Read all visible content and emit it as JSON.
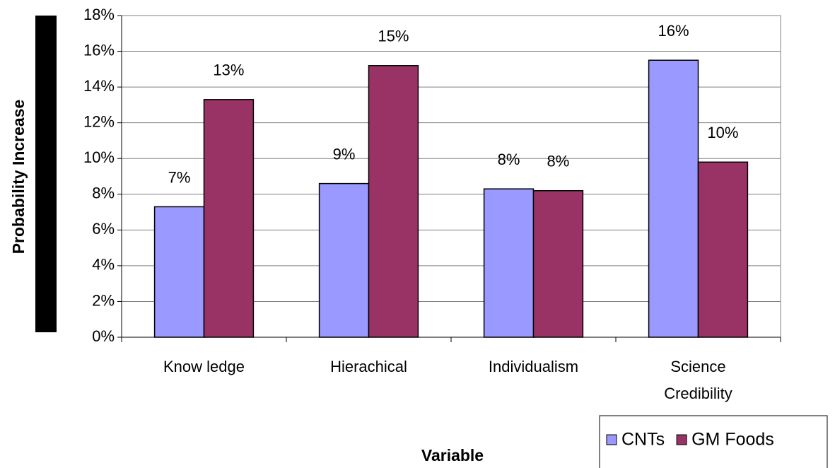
{
  "chart_data": {
    "type": "bar",
    "y_label": "Probability Increase",
    "x_label": "Variable",
    "categories": [
      "Know ledge",
      "Hierachical",
      "Individualism",
      "Science\nCredibility"
    ],
    "series": [
      {
        "name": "CNTs",
        "color": "#9999ff",
        "values": [
          7.3,
          8.6,
          8.3,
          15.5
        ],
        "value_labels": [
          "7%",
          "9%",
          "8%",
          "16%"
        ]
      },
      {
        "name": "GM Foods",
        "color": "#993366",
        "values": [
          13.3,
          15.2,
          8.2,
          9.8
        ],
        "value_labels": [
          "13%",
          "15%",
          "8%",
          "10%"
        ]
      }
    ],
    "ylim": [
      0,
      18
    ],
    "yticks": [
      {
        "value": 0,
        "label": "0%"
      },
      {
        "value": 2,
        "label": "2%"
      },
      {
        "value": 4,
        "label": "4%"
      },
      {
        "value": 6,
        "label": "6%"
      },
      {
        "value": 8,
        "label": "8%"
      },
      {
        "value": 10,
        "label": "10%"
      },
      {
        "value": 12,
        "label": "12%"
      },
      {
        "value": 14,
        "label": "14%"
      },
      {
        "value": 16,
        "label": "16%"
      },
      {
        "value": 18,
        "label": "18%"
      }
    ],
    "grid": true,
    "legend": "bottom-right"
  }
}
